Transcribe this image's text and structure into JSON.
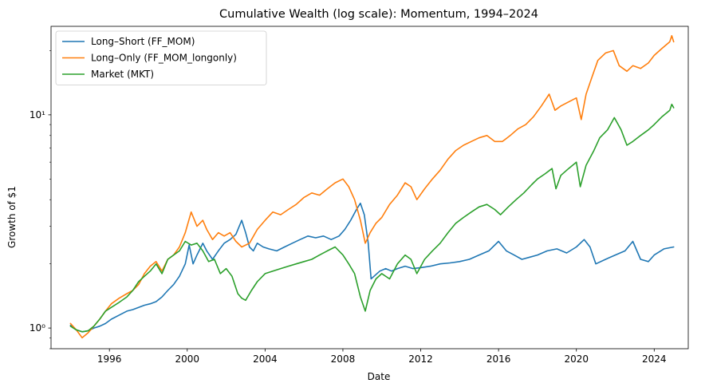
{
  "chart_data": {
    "type": "line",
    "title": "Cumulative Wealth (log scale): Momentum, 1994–2024",
    "xlabel": "Date",
    "ylabel": "Growth of $1",
    "y_scale": "log",
    "xlim": [
      1993.0,
      2025.75
    ],
    "ylim": [
      0.8,
      26
    ],
    "x_ticks": [
      1996,
      2000,
      2004,
      2008,
      2012,
      2016,
      2020,
      2024
    ],
    "x_tick_labels": [
      "1996",
      "2000",
      "2004",
      "2008",
      "2012",
      "2016",
      "2020",
      "2024"
    ],
    "y_ticks": [
      1,
      10
    ],
    "y_tick_labels": [
      "10⁰",
      "10¹"
    ],
    "y_minor_ticks": [
      0.8,
      0.9,
      2,
      3,
      4,
      5,
      6,
      7,
      8,
      9,
      20
    ],
    "grid": false,
    "legend_position": "upper-left",
    "series": [
      {
        "name": "Long–Short (FF_MOM)",
        "color": "#1f77b4",
        "points": [
          [
            1994.0,
            1.03
          ],
          [
            1994.3,
            0.98
          ],
          [
            1994.6,
            0.96
          ],
          [
            1994.9,
            0.97
          ],
          [
            1995.2,
            1.0
          ],
          [
            1995.5,
            1.02
          ],
          [
            1995.8,
            1.05
          ],
          [
            1996.1,
            1.1
          ],
          [
            1996.5,
            1.15
          ],
          [
            1996.9,
            1.2
          ],
          [
            1997.2,
            1.22
          ],
          [
            1997.5,
            1.25
          ],
          [
            1997.8,
            1.28
          ],
          [
            1998.1,
            1.3
          ],
          [
            1998.4,
            1.33
          ],
          [
            1998.7,
            1.4
          ],
          [
            1999.0,
            1.5
          ],
          [
            1999.3,
            1.6
          ],
          [
            1999.6,
            1.75
          ],
          [
            1999.9,
            2.0
          ],
          [
            2000.1,
            2.45
          ],
          [
            2000.3,
            2.0
          ],
          [
            2000.5,
            2.2
          ],
          [
            2000.8,
            2.5
          ],
          [
            2001.0,
            2.3
          ],
          [
            2001.3,
            2.1
          ],
          [
            2001.6,
            2.3
          ],
          [
            2001.9,
            2.5
          ],
          [
            2002.2,
            2.6
          ],
          [
            2002.5,
            2.75
          ],
          [
            2002.8,
            3.2
          ],
          [
            2003.0,
            2.8
          ],
          [
            2003.2,
            2.4
          ],
          [
            2003.4,
            2.3
          ],
          [
            2003.6,
            2.5
          ],
          [
            2003.9,
            2.4
          ],
          [
            2004.2,
            2.35
          ],
          [
            2004.6,
            2.3
          ],
          [
            2005.0,
            2.4
          ],
          [
            2005.4,
            2.5
          ],
          [
            2005.8,
            2.6
          ],
          [
            2006.2,
            2.7
          ],
          [
            2006.6,
            2.65
          ],
          [
            2007.0,
            2.7
          ],
          [
            2007.4,
            2.6
          ],
          [
            2007.8,
            2.7
          ],
          [
            2008.1,
            2.9
          ],
          [
            2008.4,
            3.2
          ],
          [
            2008.7,
            3.6
          ],
          [
            2008.9,
            3.85
          ],
          [
            2009.1,
            3.4
          ],
          [
            2009.3,
            2.5
          ],
          [
            2009.45,
            1.7
          ],
          [
            2009.6,
            1.75
          ],
          [
            2009.9,
            1.85
          ],
          [
            2010.2,
            1.9
          ],
          [
            2010.5,
            1.85
          ],
          [
            2010.8,
            1.9
          ],
          [
            2011.2,
            1.95
          ],
          [
            2011.6,
            1.9
          ],
          [
            2012.0,
            1.92
          ],
          [
            2012.5,
            1.95
          ],
          [
            2013.0,
            2.0
          ],
          [
            2013.5,
            2.02
          ],
          [
            2014.0,
            2.05
          ],
          [
            2014.5,
            2.1
          ],
          [
            2015.0,
            2.2
          ],
          [
            2015.5,
            2.3
          ],
          [
            2016.0,
            2.55
          ],
          [
            2016.4,
            2.3
          ],
          [
            2016.8,
            2.2
          ],
          [
            2017.2,
            2.1
          ],
          [
            2017.6,
            2.15
          ],
          [
            2018.0,
            2.2
          ],
          [
            2018.5,
            2.3
          ],
          [
            2019.0,
            2.35
          ],
          [
            2019.5,
            2.25
          ],
          [
            2020.0,
            2.4
          ],
          [
            2020.4,
            2.6
          ],
          [
            2020.7,
            2.4
          ],
          [
            2021.0,
            2.0
          ],
          [
            2021.5,
            2.1
          ],
          [
            2022.0,
            2.2
          ],
          [
            2022.5,
            2.3
          ],
          [
            2022.9,
            2.55
          ],
          [
            2023.3,
            2.1
          ],
          [
            2023.7,
            2.05
          ],
          [
            2024.0,
            2.2
          ],
          [
            2024.5,
            2.35
          ],
          [
            2025.0,
            2.4
          ]
        ]
      },
      {
        "name": "Long–Only (FF_MOM_longonly)",
        "color": "#ff7f0e",
        "points": [
          [
            1994.0,
            1.05
          ],
          [
            1994.3,
            0.98
          ],
          [
            1994.6,
            0.9
          ],
          [
            1994.9,
            0.95
          ],
          [
            1995.2,
            1.02
          ],
          [
            1995.5,
            1.1
          ],
          [
            1995.8,
            1.2
          ],
          [
            1996.1,
            1.3
          ],
          [
            1996.5,
            1.38
          ],
          [
            1996.9,
            1.45
          ],
          [
            1997.2,
            1.5
          ],
          [
            1997.5,
            1.6
          ],
          [
            1997.8,
            1.8
          ],
          [
            1998.1,
            1.95
          ],
          [
            1998.4,
            2.05
          ],
          [
            1998.7,
            1.85
          ],
          [
            1999.0,
            2.1
          ],
          [
            1999.3,
            2.2
          ],
          [
            1999.6,
            2.4
          ],
          [
            1999.9,
            2.8
          ],
          [
            2000.2,
            3.5
          ],
          [
            2000.5,
            3.0
          ],
          [
            2000.8,
            3.2
          ],
          [
            2001.0,
            2.9
          ],
          [
            2001.3,
            2.6
          ],
          [
            2001.6,
            2.8
          ],
          [
            2001.9,
            2.7
          ],
          [
            2002.2,
            2.8
          ],
          [
            2002.5,
            2.55
          ],
          [
            2002.8,
            2.4
          ],
          [
            2003.2,
            2.5
          ],
          [
            2003.6,
            2.9
          ],
          [
            2004.0,
            3.2
          ],
          [
            2004.4,
            3.5
          ],
          [
            2004.8,
            3.4
          ],
          [
            2005.2,
            3.6
          ],
          [
            2005.6,
            3.8
          ],
          [
            2006.0,
            4.1
          ],
          [
            2006.4,
            4.3
          ],
          [
            2006.8,
            4.2
          ],
          [
            2007.2,
            4.5
          ],
          [
            2007.6,
            4.8
          ],
          [
            2008.0,
            5.0
          ],
          [
            2008.3,
            4.6
          ],
          [
            2008.6,
            4.0
          ],
          [
            2008.9,
            3.2
          ],
          [
            2009.15,
            2.5
          ],
          [
            2009.4,
            2.8
          ],
          [
            2009.7,
            3.1
          ],
          [
            2010.0,
            3.3
          ],
          [
            2010.4,
            3.8
          ],
          [
            2010.8,
            4.2
          ],
          [
            2011.2,
            4.8
          ],
          [
            2011.5,
            4.6
          ],
          [
            2011.8,
            4.0
          ],
          [
            2012.2,
            4.5
          ],
          [
            2012.6,
            5.0
          ],
          [
            2013.0,
            5.5
          ],
          [
            2013.4,
            6.2
          ],
          [
            2013.8,
            6.8
          ],
          [
            2014.2,
            7.2
          ],
          [
            2014.6,
            7.5
          ],
          [
            2015.0,
            7.8
          ],
          [
            2015.4,
            8.0
          ],
          [
            2015.8,
            7.5
          ],
          [
            2016.2,
            7.5
          ],
          [
            2016.6,
            8.0
          ],
          [
            2017.0,
            8.6
          ],
          [
            2017.4,
            9.0
          ],
          [
            2017.8,
            9.8
          ],
          [
            2018.2,
            11.0
          ],
          [
            2018.6,
            12.5
          ],
          [
            2018.9,
            10.5
          ],
          [
            2019.2,
            11.0
          ],
          [
            2019.6,
            11.5
          ],
          [
            2020.0,
            12.0
          ],
          [
            2020.25,
            9.5
          ],
          [
            2020.5,
            12.5
          ],
          [
            2020.8,
            15.0
          ],
          [
            2021.1,
            18.0
          ],
          [
            2021.5,
            19.5
          ],
          [
            2021.9,
            20.0
          ],
          [
            2022.2,
            17.0
          ],
          [
            2022.6,
            16.0
          ],
          [
            2022.9,
            17.0
          ],
          [
            2023.3,
            16.5
          ],
          [
            2023.7,
            17.5
          ],
          [
            2024.0,
            19.0
          ],
          [
            2024.4,
            20.5
          ],
          [
            2024.8,
            22.0
          ],
          [
            2024.9,
            23.5
          ],
          [
            2025.0,
            22.0
          ]
        ]
      },
      {
        "name": "Market (MKT)",
        "color": "#2ca02c",
        "points": [
          [
            1994.0,
            1.02
          ],
          [
            1994.3,
            0.98
          ],
          [
            1994.6,
            0.96
          ],
          [
            1994.9,
            0.97
          ],
          [
            1995.2,
            1.02
          ],
          [
            1995.5,
            1.1
          ],
          [
            1995.8,
            1.2
          ],
          [
            1996.1,
            1.25
          ],
          [
            1996.5,
            1.32
          ],
          [
            1996.9,
            1.4
          ],
          [
            1997.2,
            1.5
          ],
          [
            1997.5,
            1.65
          ],
          [
            1997.8,
            1.75
          ],
          [
            1998.1,
            1.85
          ],
          [
            1998.4,
            2.0
          ],
          [
            1998.7,
            1.8
          ],
          [
            1999.0,
            2.1
          ],
          [
            1999.3,
            2.2
          ],
          [
            1999.6,
            2.3
          ],
          [
            1999.9,
            2.55
          ],
          [
            2000.2,
            2.45
          ],
          [
            2000.5,
            2.5
          ],
          [
            2000.8,
            2.3
          ],
          [
            2001.1,
            2.05
          ],
          [
            2001.4,
            2.1
          ],
          [
            2001.7,
            1.8
          ],
          [
            2002.0,
            1.9
          ],
          [
            2002.3,
            1.75
          ],
          [
            2002.6,
            1.45
          ],
          [
            2002.8,
            1.38
          ],
          [
            2003.0,
            1.35
          ],
          [
            2003.3,
            1.5
          ],
          [
            2003.6,
            1.65
          ],
          [
            2004.0,
            1.8
          ],
          [
            2004.4,
            1.85
          ],
          [
            2004.8,
            1.9
          ],
          [
            2005.2,
            1.95
          ],
          [
            2005.6,
            2.0
          ],
          [
            2006.0,
            2.05
          ],
          [
            2006.4,
            2.1
          ],
          [
            2006.8,
            2.2
          ],
          [
            2007.2,
            2.3
          ],
          [
            2007.6,
            2.4
          ],
          [
            2008.0,
            2.2
          ],
          [
            2008.3,
            2.0
          ],
          [
            2008.6,
            1.8
          ],
          [
            2008.9,
            1.4
          ],
          [
            2009.15,
            1.2
          ],
          [
            2009.4,
            1.5
          ],
          [
            2009.7,
            1.7
          ],
          [
            2010.0,
            1.8
          ],
          [
            2010.4,
            1.7
          ],
          [
            2010.8,
            2.0
          ],
          [
            2011.2,
            2.2
          ],
          [
            2011.5,
            2.1
          ],
          [
            2011.8,
            1.8
          ],
          [
            2012.2,
            2.1
          ],
          [
            2012.6,
            2.3
          ],
          [
            2013.0,
            2.5
          ],
          [
            2013.4,
            2.8
          ],
          [
            2013.8,
            3.1
          ],
          [
            2014.2,
            3.3
          ],
          [
            2014.6,
            3.5
          ],
          [
            2015.0,
            3.7
          ],
          [
            2015.4,
            3.8
          ],
          [
            2015.8,
            3.6
          ],
          [
            2016.1,
            3.4
          ],
          [
            2016.5,
            3.7
          ],
          [
            2016.9,
            4.0
          ],
          [
            2017.3,
            4.3
          ],
          [
            2017.7,
            4.7
          ],
          [
            2018.0,
            5.0
          ],
          [
            2018.4,
            5.3
          ],
          [
            2018.75,
            5.6
          ],
          [
            2018.95,
            4.5
          ],
          [
            2019.2,
            5.2
          ],
          [
            2019.6,
            5.6
          ],
          [
            2020.0,
            6.0
          ],
          [
            2020.2,
            4.6
          ],
          [
            2020.5,
            5.8
          ],
          [
            2020.9,
            6.8
          ],
          [
            2021.2,
            7.8
          ],
          [
            2021.6,
            8.5
          ],
          [
            2021.95,
            9.7
          ],
          [
            2022.3,
            8.5
          ],
          [
            2022.6,
            7.2
          ],
          [
            2022.9,
            7.5
          ],
          [
            2023.3,
            8.0
          ],
          [
            2023.7,
            8.5
          ],
          [
            2024.0,
            9.0
          ],
          [
            2024.4,
            9.8
          ],
          [
            2024.8,
            10.5
          ],
          [
            2024.9,
            11.2
          ],
          [
            2025.0,
            10.8
          ]
        ]
      }
    ]
  }
}
